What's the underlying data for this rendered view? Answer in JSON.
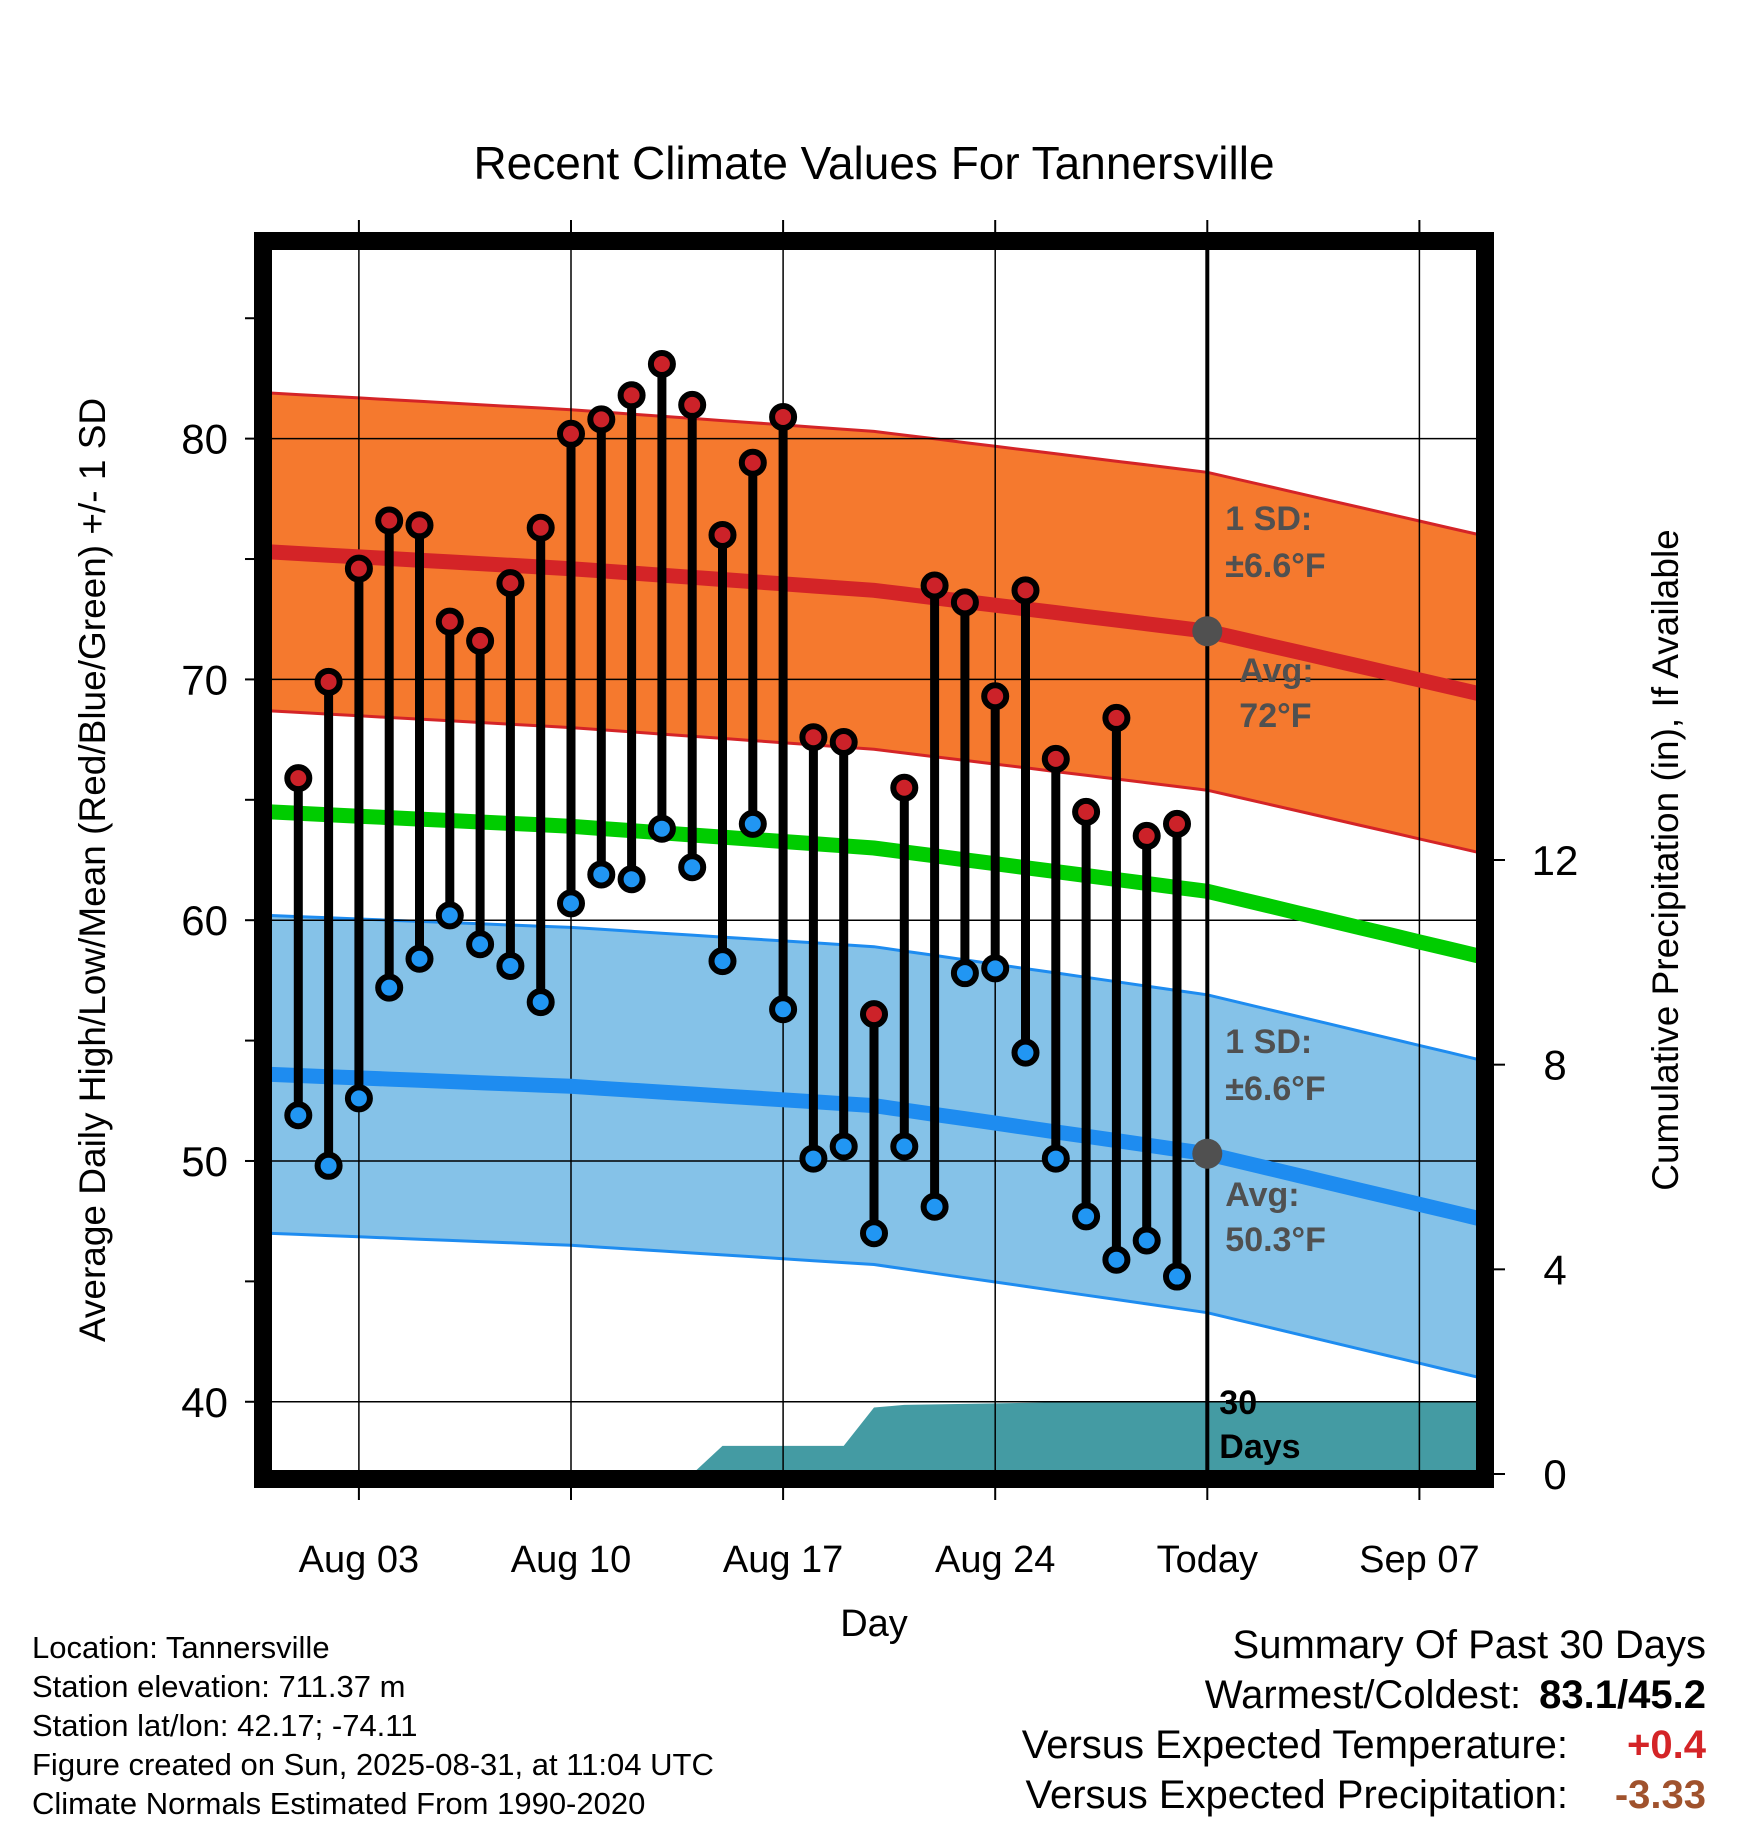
{
  "chart_data": {
    "type": "line",
    "title": "Recent Climate Values For Tannersville",
    "xlabel": "Day",
    "ylabel_left": "Average Daily High/Low/Mean (Red/Blue/Green) +/- 1 SD",
    "ylabel_right": "Cumulative Precipitation (in), If Available",
    "ylim_left": [
      37,
      88
    ],
    "ylim_right": [
      0,
      24
    ],
    "left_ticks": [
      "40",
      "50",
      "60",
      "70",
      "80"
    ],
    "right_ticks": [
      "0",
      "4",
      "8",
      "12"
    ],
    "x_tick_labels": [
      "Aug 03",
      "Aug 10",
      "Aug 17",
      "Aug 24",
      "Today",
      "Sep 07"
    ],
    "x_range": [
      "2025-07-31",
      "2025-09-09"
    ],
    "today": "2025-08-31",
    "days": [
      "2025-08-01",
      "2025-08-02",
      "2025-08-03",
      "2025-08-04",
      "2025-08-05",
      "2025-08-06",
      "2025-08-07",
      "2025-08-08",
      "2025-08-09",
      "2025-08-10",
      "2025-08-11",
      "2025-08-12",
      "2025-08-13",
      "2025-08-14",
      "2025-08-15",
      "2025-08-16",
      "2025-08-17",
      "2025-08-18",
      "2025-08-19",
      "2025-08-20",
      "2025-08-21",
      "2025-08-22",
      "2025-08-23",
      "2025-08-24",
      "2025-08-25",
      "2025-08-26",
      "2025-08-27",
      "2025-08-28",
      "2025-08-29",
      "2025-08-30"
    ],
    "highs": [
      65.9,
      69.9,
      74.6,
      76.6,
      76.4,
      72.4,
      71.6,
      74.0,
      76.3,
      80.2,
      80.8,
      81.8,
      83.1,
      81.4,
      76.0,
      79.0,
      80.9,
      67.6,
      67.4,
      56.1,
      65.5,
      73.9,
      73.2,
      69.3,
      73.7,
      66.7,
      64.5,
      68.4,
      63.5,
      64.0
    ],
    "lows": [
      51.9,
      49.8,
      52.6,
      57.2,
      58.4,
      60.2,
      59.0,
      58.1,
      56.6,
      60.7,
      61.9,
      61.7,
      63.8,
      62.2,
      58.3,
      64.0,
      56.3,
      50.1,
      50.6,
      47.0,
      50.6,
      48.1,
      57.8,
      58.0,
      54.5,
      50.1,
      47.7,
      45.9,
      46.7,
      45.2
    ],
    "normals": {
      "dates": [
        "2025-07-31",
        "2025-08-10",
        "2025-08-20",
        "2025-08-31",
        "2025-09-09"
      ],
      "avg_high": [
        75.3,
        74.6,
        73.7,
        72.0,
        69.4
      ],
      "avg_low": [
        53.6,
        53.1,
        52.3,
        50.3,
        47.6
      ],
      "avg_mean": [
        64.5,
        63.9,
        63.0,
        61.2,
        58.5
      ],
      "sd": 6.6
    },
    "precip": {
      "dates": [
        "2025-08-14",
        "2025-08-15",
        "2025-08-18",
        "2025-08-19",
        "2025-08-20",
        "2025-08-21",
        "2025-08-24",
        "2025-08-28",
        "2025-09-09"
      ],
      "cumulative": [
        0.0,
        0.55,
        0.55,
        0.55,
        1.3,
        1.35,
        1.38,
        1.42,
        1.42
      ]
    },
    "annotations": {
      "high_sd": [
        "1 SD:",
        "±6.6°F"
      ],
      "high_avg": [
        "Avg:",
        "72°F"
      ],
      "low_sd": [
        "1 SD:",
        "±6.6°F"
      ],
      "low_avg": [
        "Avg:",
        "50.3°F"
      ],
      "precip_label": [
        "30",
        "Days"
      ]
    },
    "grid": true,
    "colors": {
      "high_band": "#f5792e",
      "high_line": "#d42427",
      "low_band": "#85c2e8",
      "low_line": "#1e8cf0",
      "mean_line": "#00cc00",
      "precip_fill": "#449ba3",
      "high_marker": "#cc2229",
      "low_marker": "#2196f3",
      "annotation_text": "#505050",
      "today_marker": "#505050"
    }
  },
  "info": {
    "location": "Location: Tannersville",
    "elevation": "Station elevation: 711.37 m",
    "latlon": "Station lat/lon: 42.17; -74.11",
    "created": "Figure created on Sun, 2025-08-31, at 11:04 UTC",
    "normals": "Climate Normals Estimated From 1990-2020"
  },
  "summary": {
    "title": "Summary Of Past 30 Days",
    "warmest_label": "Warmest/Coldest:",
    "warmest_value": "83.1/45.2",
    "temp_label": "Versus Expected Temperature:",
    "temp_value": "+0.4",
    "temp_color": "#d42427",
    "precip_label": "Versus Expected Precipitation:",
    "precip_value": "-3.33",
    "precip_color": "#a0522d"
  }
}
